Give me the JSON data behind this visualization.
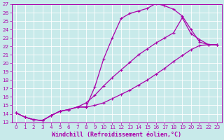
{
  "xlabel": "Windchill (Refroidissement éolien,°C)",
  "bg_color": "#c8eaea",
  "line_color": "#aa00aa",
  "grid_color": "#ffffff",
  "xlim": [
    -0.5,
    23.5
  ],
  "ylim": [
    13,
    27
  ],
  "xticks": [
    0,
    1,
    2,
    3,
    4,
    5,
    6,
    7,
    8,
    9,
    10,
    11,
    12,
    13,
    14,
    15,
    16,
    17,
    18,
    19,
    20,
    21,
    22,
    23
  ],
  "yticks": [
    13,
    14,
    15,
    16,
    17,
    18,
    19,
    20,
    21,
    22,
    23,
    24,
    25,
    26,
    27
  ],
  "line1_x": [
    0,
    1,
    2,
    3,
    4,
    5,
    6,
    7,
    8,
    9,
    10,
    11,
    12,
    13,
    14,
    15,
    16,
    17,
    18,
    19,
    20,
    21,
    22,
    23
  ],
  "line1_y": [
    14.1,
    13.6,
    13.3,
    13.2,
    13.8,
    14.3,
    14.5,
    14.8,
    14.8,
    17.2,
    20.5,
    23.0,
    25.3,
    25.9,
    26.2,
    26.5,
    27.1,
    26.8,
    26.4,
    25.6,
    24.0,
    22.5,
    22.2,
    22.2
  ],
  "line2_x": [
    0,
    1,
    2,
    3,
    4,
    5,
    6,
    7,
    8,
    9,
    10,
    11,
    12,
    13,
    14,
    15,
    16,
    17,
    18,
    19,
    20,
    21,
    22,
    23
  ],
  "line2_y": [
    14.1,
    13.6,
    13.3,
    13.2,
    13.8,
    14.3,
    14.5,
    14.8,
    15.3,
    16.2,
    17.3,
    18.3,
    19.2,
    20.1,
    21.0,
    21.7,
    22.4,
    23.0,
    23.6,
    25.4,
    23.5,
    22.8,
    22.2,
    22.2
  ],
  "line3_x": [
    0,
    1,
    2,
    3,
    4,
    5,
    6,
    7,
    8,
    9,
    10,
    11,
    12,
    13,
    14,
    15,
    16,
    17,
    18,
    19,
    20,
    21,
    22,
    23
  ],
  "line3_y": [
    14.1,
    13.6,
    13.3,
    13.2,
    13.8,
    14.3,
    14.5,
    14.8,
    14.8,
    15.0,
    15.3,
    15.8,
    16.3,
    16.8,
    17.4,
    18.0,
    18.7,
    19.4,
    20.2,
    20.9,
    21.6,
    22.1,
    22.2,
    22.2
  ],
  "tick_fontsize": 5.2,
  "label_fontsize": 6.0
}
